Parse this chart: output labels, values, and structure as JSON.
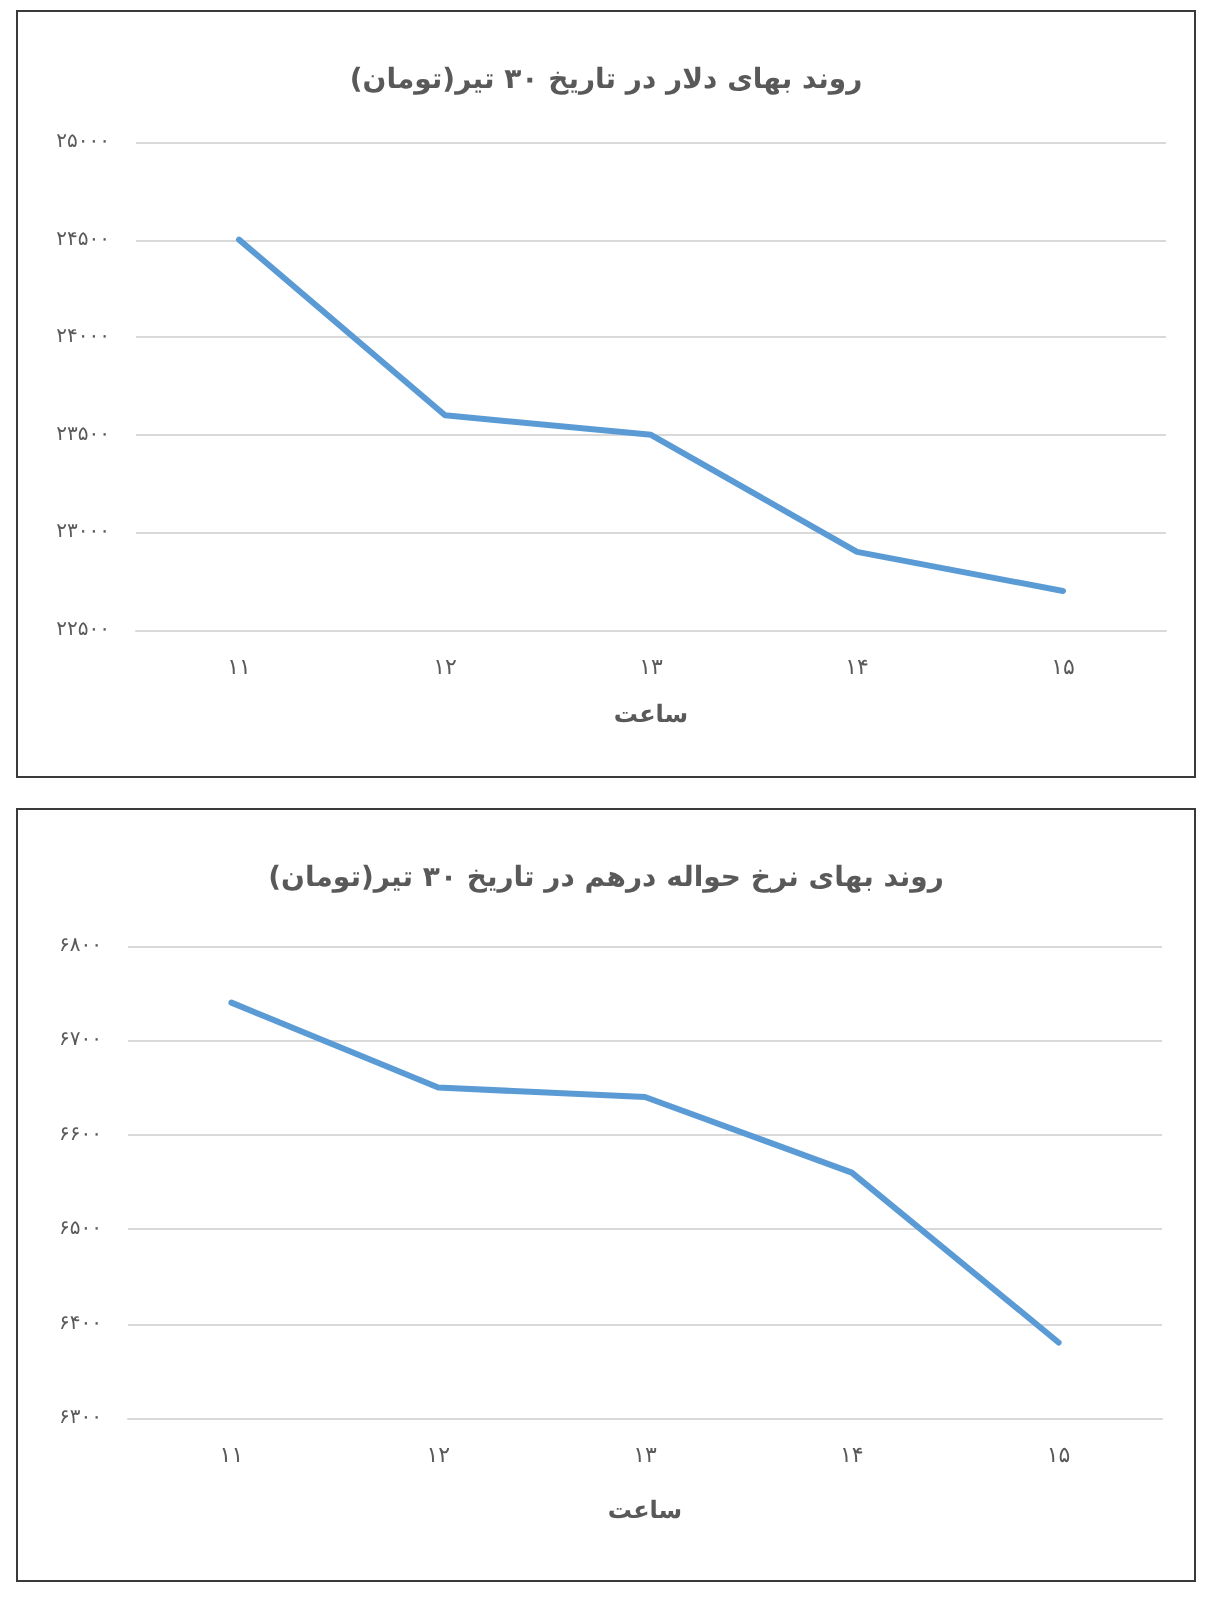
{
  "chart_data": [
    {
      "type": "line",
      "title": "روند بهای دلار در تاریخ ۳۰ تیر(تومان)",
      "xlabel": "ساعت",
      "categories": [
        "۱۱",
        "۱۲",
        "۱۳",
        "۱۴",
        "۱۵"
      ],
      "series": [
        {
          "color": "#5b9bd5",
          "values": [
            24500,
            23600,
            23500,
            22900,
            22700
          ]
        }
      ],
      "ylim": [
        22500,
        25000
      ],
      "yticks": [
        {
          "value": 22500,
          "label": "۲۲۵۰۰"
        },
        {
          "value": 23000,
          "label": "۲۳۰۰۰"
        },
        {
          "value": 23500,
          "label": "۲۳۵۰۰"
        },
        {
          "value": 24000,
          "label": "۲۴۰۰۰"
        },
        {
          "value": 24500,
          "label": "۲۴۵۰۰"
        },
        {
          "value": 25000,
          "label": "۲۵۰۰۰"
        }
      ],
      "grid": "y",
      "marker": "none"
    },
    {
      "type": "line",
      "title": "روند بهای نرخ حواله درهم در تاریخ ۳۰ تیر(تومان)",
      "xlabel": "ساعت",
      "categories": [
        "۱۱",
        "۱۲",
        "۱۳",
        "۱۴",
        "۱۵"
      ],
      "series": [
        {
          "color": "#5b9bd5",
          "values": [
            6740,
            6650,
            6640,
            6560,
            6380
          ]
        }
      ],
      "ylim": [
        6300,
        6800
      ],
      "yticks": [
        {
          "value": 6300,
          "label": "۶۳۰۰"
        },
        {
          "value": 6400,
          "label": "۶۴۰۰"
        },
        {
          "value": 6500,
          "label": "۶۵۰۰"
        },
        {
          "value": 6600,
          "label": "۶۶۰۰"
        },
        {
          "value": 6700,
          "label": "۶۷۰۰"
        },
        {
          "value": 6800,
          "label": "۶۸۰۰"
        }
      ],
      "grid": "y",
      "marker": "none"
    }
  ]
}
